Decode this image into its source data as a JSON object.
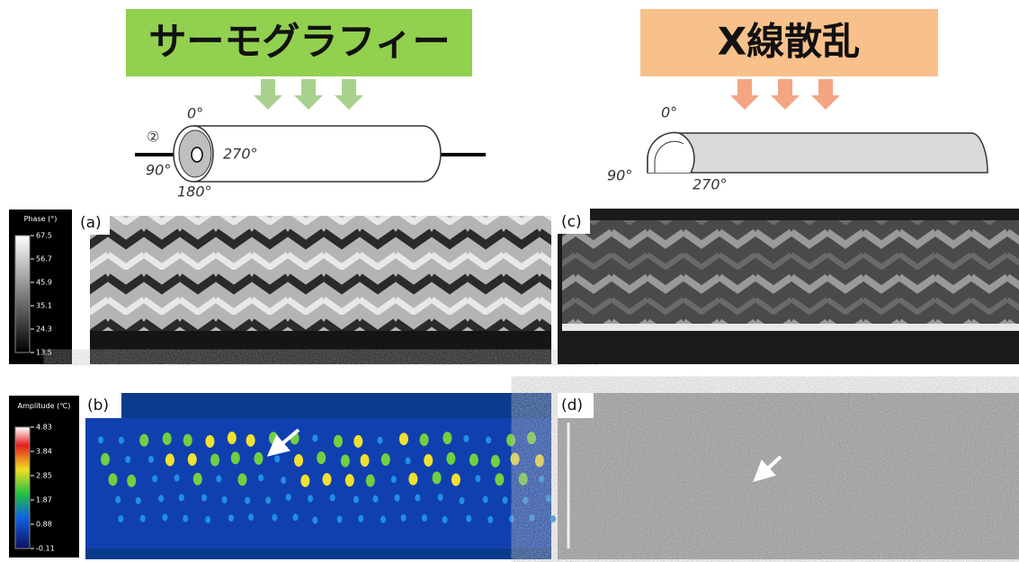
{
  "left_header": "サーモグラフィー",
  "right_header": "X線散乱",
  "left_diagram": {
    "marker": "②",
    "angles": [
      "0°",
      "90°",
      "180°",
      "270°"
    ]
  },
  "right_diagram": {
    "angles": [
      "0°",
      "90°",
      "270°"
    ]
  },
  "phase_bar": {
    "title": "Phase (°)",
    "ticks": [
      "67.5",
      "56.7",
      "45.9",
      "35.1",
      "24.3",
      "13.5"
    ]
  },
  "amplitude_bar": {
    "title": "Amplitude (℃)",
    "ticks": [
      "4.83",
      "3.84",
      "2.85",
      "1.87",
      "0.88",
      "-0.11"
    ]
  },
  "panels": [
    "(a)",
    "(b)",
    "(c)",
    "(d)"
  ]
}
